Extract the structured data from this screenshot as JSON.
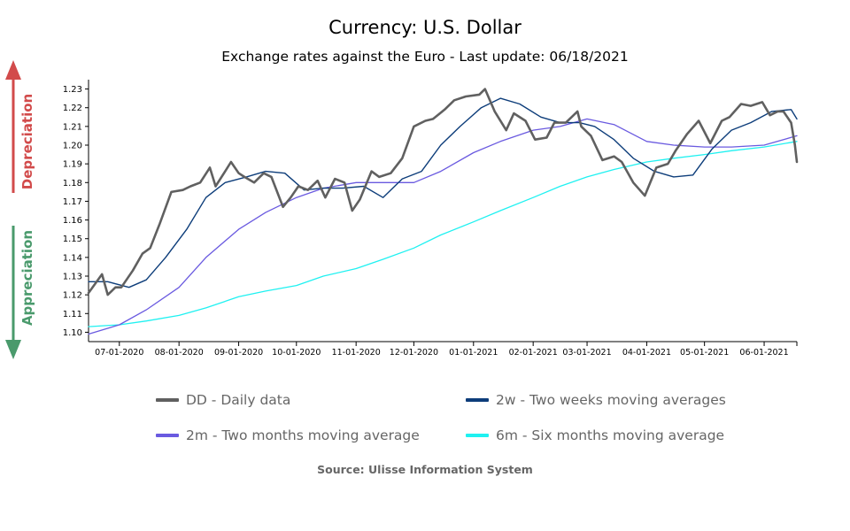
{
  "chart_data": {
    "type": "line",
    "title": "Currency: U.S. Dollar",
    "subtitle": "Exchange rates against the Euro - Last update: 06/18/2021",
    "source": "Source: Ulisse Information System",
    "ylim": [
      1.095,
      1.235
    ],
    "yticks": [
      "1.10",
      "1.11",
      "1.12",
      "1.13",
      "1.14",
      "1.15",
      "1.16",
      "1.17",
      "1.18",
      "1.19",
      "1.20",
      "1.21",
      "1.22",
      "1.23"
    ],
    "xticks": [
      "07-01-2020",
      "08-01-2020",
      "09-01-2020",
      "10-01-2020",
      "11-01-2020",
      "12-01-2020",
      "01-01-2021",
      "02-01-2021",
      "03-01-2021",
      "04-01-2021",
      "05-01-2021",
      "06-01-2021"
    ],
    "x_range": [
      "06-15-2020",
      "06-18-2021"
    ],
    "side_labels": {
      "up": "Depreciation",
      "down": "Appreciation"
    },
    "colors": {
      "daily": "#606060",
      "two_weeks": "#0d3d7a",
      "two_months": "#6a5ae0",
      "six_months": "#1ff1f1",
      "up_arrow": "#d24b4b",
      "down_arrow": "#4a9a6c"
    },
    "series": [
      {
        "name": "DD - Daily data",
        "key": "daily",
        "x": [
          "06-15-2020",
          "06-22-2020",
          "06-25-2020",
          "06-29-2020",
          "07-02-2020",
          "07-08-2020",
          "07-13-2020",
          "07-17-2020",
          "07-22-2020",
          "07-28-2020",
          "08-03-2020",
          "08-07-2020",
          "08-12-2020",
          "08-17-2020",
          "08-20-2020",
          "08-25-2020",
          "08-28-2020",
          "09-01-2020",
          "09-04-2020",
          "09-09-2020",
          "09-14-2020",
          "09-18-2020",
          "09-24-2020",
          "09-28-2020",
          "10-02-2020",
          "10-07-2020",
          "10-12-2020",
          "10-16-2020",
          "10-21-2020",
          "10-26-2020",
          "10-30-2020",
          "11-03-2020",
          "11-09-2020",
          "11-13-2020",
          "11-19-2020",
          "11-25-2020",
          "12-01-2020",
          "12-07-2020",
          "12-11-2020",
          "12-17-2020",
          "12-22-2020",
          "12-28-2020",
          "01-04-2021",
          "01-07-2021",
          "01-12-2021",
          "01-18-2021",
          "01-22-2021",
          "01-28-2021",
          "02-02-2021",
          "02-08-2021",
          "02-12-2021",
          "02-18-2021",
          "02-24-2021",
          "02-26-2021",
          "03-03-2021",
          "03-09-2021",
          "03-15-2021",
          "03-19-2021",
          "03-25-2021",
          "03-31-2021",
          "04-06-2021",
          "04-12-2021",
          "04-16-2021",
          "04-22-2021",
          "04-28-2021",
          "05-04-2021",
          "05-10-2021",
          "05-14-2021",
          "05-20-2021",
          "05-25-2021",
          "05-31-2021",
          "06-04-2021",
          "06-08-2021",
          "06-11-2021",
          "06-15-2021",
          "06-17-2021",
          "06-18-2021"
        ],
        "values": [
          1.121,
          1.131,
          1.12,
          1.124,
          1.124,
          1.133,
          1.142,
          1.145,
          1.158,
          1.175,
          1.176,
          1.178,
          1.18,
          1.188,
          1.178,
          1.186,
          1.191,
          1.185,
          1.183,
          1.18,
          1.185,
          1.183,
          1.167,
          1.172,
          1.178,
          1.176,
          1.181,
          1.172,
          1.182,
          1.18,
          1.165,
          1.171,
          1.186,
          1.183,
          1.185,
          1.193,
          1.21,
          1.213,
          1.214,
          1.219,
          1.224,
          1.226,
          1.227,
          1.23,
          1.218,
          1.208,
          1.217,
          1.213,
          1.203,
          1.204,
          1.212,
          1.212,
          1.218,
          1.21,
          1.205,
          1.192,
          1.194,
          1.191,
          1.18,
          1.173,
          1.188,
          1.19,
          1.197,
          1.206,
          1.213,
          1.201,
          1.213,
          1.215,
          1.222,
          1.221,
          1.223,
          1.216,
          1.218,
          1.218,
          1.212,
          1.2,
          1.191
        ]
      },
      {
        "name": "2w - Two weeks moving averages",
        "key": "two_weeks",
        "x": [
          "06-15-2020",
          "06-25-2020",
          "07-06-2020",
          "07-15-2020",
          "07-25-2020",
          "08-05-2020",
          "08-15-2020",
          "08-25-2020",
          "09-05-2020",
          "09-15-2020",
          "09-25-2020",
          "10-05-2020",
          "10-15-2020",
          "10-25-2020",
          "11-05-2020",
          "11-15-2020",
          "11-25-2020",
          "12-05-2020",
          "12-15-2020",
          "12-25-2020",
          "01-05-2021",
          "01-15-2021",
          "01-25-2021",
          "02-05-2021",
          "02-15-2021",
          "02-25-2021",
          "03-05-2021",
          "03-15-2021",
          "03-25-2021",
          "04-05-2021",
          "04-15-2021",
          "04-25-2021",
          "05-05-2021",
          "05-15-2021",
          "05-25-2021",
          "06-05-2021",
          "06-15-2021",
          "06-18-2021"
        ],
        "values": [
          1.127,
          1.127,
          1.124,
          1.128,
          1.14,
          1.155,
          1.172,
          1.18,
          1.183,
          1.186,
          1.185,
          1.176,
          1.177,
          1.177,
          1.178,
          1.172,
          1.182,
          1.186,
          1.2,
          1.21,
          1.22,
          1.225,
          1.222,
          1.215,
          1.212,
          1.212,
          1.21,
          1.203,
          1.193,
          1.186,
          1.183,
          1.184,
          1.198,
          1.208,
          1.212,
          1.218,
          1.219,
          1.214
        ]
      },
      {
        "name": "2m - Two months moving average",
        "key": "two_months",
        "x": [
          "06-15-2020",
          "07-01-2020",
          "07-15-2020",
          "08-01-2020",
          "08-15-2020",
          "09-01-2020",
          "09-15-2020",
          "10-01-2020",
          "10-15-2020",
          "11-01-2020",
          "11-15-2020",
          "12-01-2020",
          "12-15-2020",
          "01-01-2021",
          "01-15-2021",
          "02-01-2021",
          "02-15-2021",
          "03-01-2021",
          "03-15-2021",
          "04-01-2021",
          "04-15-2021",
          "05-01-2021",
          "05-15-2021",
          "06-01-2021",
          "06-18-2021"
        ],
        "values": [
          1.099,
          1.104,
          1.112,
          1.124,
          1.14,
          1.155,
          1.164,
          1.172,
          1.177,
          1.18,
          1.18,
          1.18,
          1.186,
          1.196,
          1.202,
          1.208,
          1.21,
          1.214,
          1.211,
          1.202,
          1.2,
          1.199,
          1.199,
          1.2,
          1.205
        ]
      },
      {
        "name": "6m - Six months moving average",
        "key": "six_months",
        "x": [
          "06-15-2020",
          "07-01-2020",
          "07-15-2020",
          "08-01-2020",
          "08-15-2020",
          "09-01-2020",
          "09-15-2020",
          "10-01-2020",
          "10-15-2020",
          "11-01-2020",
          "11-15-2020",
          "12-01-2020",
          "12-15-2020",
          "01-01-2021",
          "01-15-2021",
          "02-01-2021",
          "02-15-2021",
          "03-01-2021",
          "03-15-2021",
          "04-01-2021",
          "04-15-2021",
          "05-01-2021",
          "05-15-2021",
          "06-01-2021",
          "06-18-2021"
        ],
        "values": [
          1.103,
          1.104,
          1.106,
          1.109,
          1.113,
          1.119,
          1.122,
          1.125,
          1.13,
          1.134,
          1.139,
          1.145,
          1.152,
          1.159,
          1.165,
          1.172,
          1.178,
          1.183,
          1.187,
          1.191,
          1.193,
          1.195,
          1.197,
          1.199,
          1.202
        ]
      }
    ]
  }
}
